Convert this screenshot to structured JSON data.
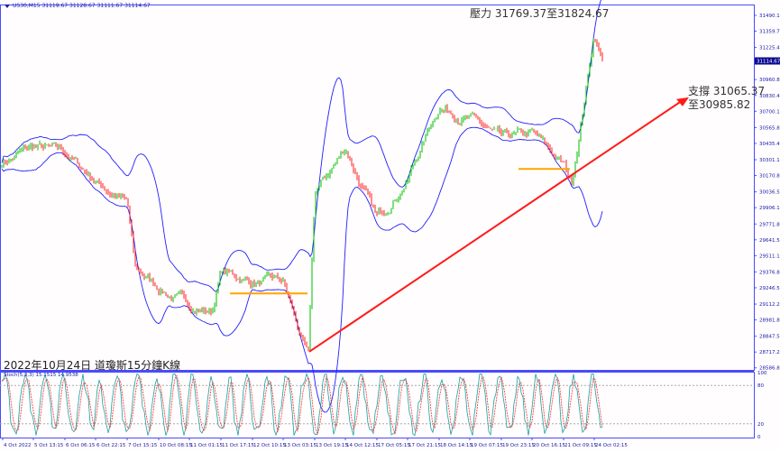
{
  "header": {
    "symbol": "US30,M15",
    "ohlc": "31119.67 31128.67 31111.67 31114.67"
  },
  "annotations": {
    "title": "2022年10月24日 道瓊斯15分鐘K線",
    "resistance": "壓力 31769.37至31824.67",
    "support_line1": "支撐 31065.37",
    "support_line2": "至30985.82"
  },
  "colors": {
    "bull": "#00c000",
    "bear": "#ff2020",
    "bands": "#2020ff",
    "axis": "#4a4aff",
    "trendline": "#ff1a1a",
    "level": "#ffa500",
    "stoch_main": "#1aa0a0",
    "stoch_signal": "#ff3030"
  },
  "chart_data": {
    "type": "candlestick",
    "symbol": "US30",
    "timeframe": "M15",
    "indicators": [
      "Bollinger Bands",
      "Stochastic(5,3,3)"
    ],
    "y_ticks": [
      "31490.10",
      "31359.75",
      "31225.45",
      "30960.80",
      "30830.45",
      "30700.10",
      "30565.80",
      "30435.45",
      "30301.15",
      "30170.80",
      "30036.50",
      "29906.15",
      "29771.85",
      "29641.50",
      "29511.15",
      "29376.85",
      "29246.50",
      "29112.20",
      "28981.85",
      "28847.55",
      "28717.20",
      "28586.85"
    ],
    "current_price": "31114.67",
    "x_ticks": [
      "4 Oct 2022",
      "5 Oct 13:15",
      "6 Oct 06:15",
      "6 Oct 22:15",
      "7 Oct 15:15",
      "10 Oct 08:15",
      "11 Oct 01:15",
      "11 Oct 17:15",
      "12 Oct 10:15",
      "13 Oct 03:15",
      "13 Oct 19:15",
      "14 Oct 12:15",
      "17 Oct 05:15",
      "17 Oct 21:15",
      "18 Oct 14:15",
      "19 Oct 07:15",
      "19 Oct 23:15",
      "20 Oct 16:15",
      "21 Oct 09:15",
      "24 Oct 02:15"
    ],
    "price_path": [
      {
        "time": "4 Oct 2022",
        "close": 30280
      },
      {
        "time": "5 Oct 13:15",
        "close": 30400
      },
      {
        "time": "6 Oct 06:15",
        "close": 30350
      },
      {
        "time": "6 Oct 22:15",
        "close": 30130
      },
      {
        "time": "7 Oct 15:15",
        "close": 29950
      },
      {
        "time": "7 Oct 19:45",
        "close": 29390
      },
      {
        "time": "10 Oct 08:15",
        "close": 29250
      },
      {
        "time": "11 Oct 01:15",
        "close": 29100
      },
      {
        "time": "11 Oct 10:00",
        "close": 29050
      },
      {
        "time": "11 Oct 17:15",
        "close": 29380
      },
      {
        "time": "12 Oct 10:15",
        "close": 29300
      },
      {
        "time": "13 Oct 03:15",
        "close": 29280
      },
      {
        "time": "13 Oct 17:00",
        "close": 28650
      },
      {
        "time": "13 Oct 19:15",
        "close": 30000
      },
      {
        "time": "14 Oct 12:15",
        "close": 30400
      },
      {
        "time": "17 Oct 05:15",
        "close": 29800
      },
      {
        "time": "17 Oct 21:15",
        "close": 30150
      },
      {
        "time": "18 Oct 14:15",
        "close": 30750
      },
      {
        "time": "19 Oct 07:15",
        "close": 30650
      },
      {
        "time": "19 Oct 23:15",
        "close": 30450
      },
      {
        "time": "20 Oct 16:15",
        "close": 30500
      },
      {
        "time": "21 Oct 09:15",
        "close": 30250
      },
      {
        "time": "21 Oct 14:00",
        "close": 30100
      },
      {
        "time": "24 Oct 02:15",
        "close": 31350
      },
      {
        "time": "24 Oct 05:00",
        "close": 31114.67
      }
    ],
    "horizontal_levels": [
      {
        "price": 29200,
        "from": "11 Oct 17:15",
        "to": "13 Oct 17:00"
      },
      {
        "price": 30225,
        "from": "20 Oct 08:00",
        "to": "21 Oct 12:00"
      }
    ],
    "trendline": {
      "start_price": 28720,
      "end_price": 30815
    },
    "stochastic": {
      "label": "Stoch(5,3,3) 15.1515 14.9538",
      "main": 15.1515,
      "signal": 14.9538,
      "levels": [
        20,
        80
      ],
      "ticks": [
        "100",
        "80",
        "20",
        "0"
      ],
      "range": [
        0,
        100
      ]
    }
  }
}
